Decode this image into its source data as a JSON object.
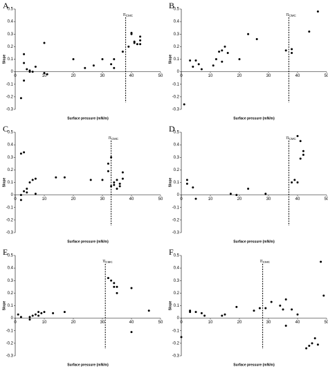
{
  "chart_data": [
    {
      "type": "scatter",
      "title": "A",
      "x_label": "Surface pressure (mN/m)",
      "y_label": "Slope",
      "annotation": "π",
      "annotation_sub": "CMC",
      "vline": 38,
      "color": "#000000",
      "x": [
        2,
        3,
        3,
        3,
        4,
        5,
        5,
        6,
        7,
        10,
        10,
        11,
        20,
        24,
        27,
        30,
        33,
        34,
        34,
        37,
        39,
        40,
        40,
        41,
        41,
        42,
        43,
        43,
        43
      ],
      "values": [
        -0.21,
        -0.07,
        0.07,
        0.14,
        0.02,
        0.0,
        0.01,
        0.0,
        0.04,
        0.23,
        -0.01,
        -0.02,
        0.1,
        0.03,
        0.05,
        0.1,
        0.06,
        0.03,
        0.1,
        0.16,
        0.2,
        0.31,
        0.3,
        0.23,
        0.24,
        0.22,
        0.28,
        0.22,
        0.25
      ],
      "xlim": [
        0,
        50
      ],
      "ylim": [
        -0.3,
        0.5
      ],
      "xticks": [
        0,
        10,
        20,
        30,
        40,
        50
      ],
      "yticks": [
        -0.3,
        -0.2,
        -0.1,
        0,
        0.1,
        0.2,
        0.3,
        0.4,
        0.5
      ]
    },
    {
      "type": "scatter",
      "title": "B",
      "x_label": "Surface pressure (mN/m)",
      "y_label": "Slope",
      "annotation": "π",
      "annotation_sub": "CMC",
      "vline": 37,
      "color": "#000000",
      "x": [
        1,
        3,
        4,
        5,
        6,
        7,
        11,
        12,
        13,
        14,
        14,
        15,
        16,
        20,
        23,
        26,
        36,
        38,
        38,
        44,
        47
      ],
      "values": [
        -0.26,
        0.09,
        0.04,
        0.09,
        0.06,
        0.02,
        0.05,
        0.1,
        0.16,
        0.17,
        0.08,
        0.2,
        0.15,
        0.1,
        0.3,
        0.26,
        0.17,
        0.18,
        0.15,
        0.32,
        0.48
      ],
      "xlim": [
        0,
        50
      ],
      "ylim": [
        -0.3,
        0.5
      ],
      "xticks": [
        0,
        10,
        20,
        30,
        40,
        50
      ],
      "yticks": [
        -0.3,
        -0.2,
        -0.1,
        0,
        0.1,
        0.2,
        0.3,
        0.4,
        0.5
      ]
    },
    {
      "type": "scatter",
      "title": "C",
      "x_label": "Surface pressure (mN/m)",
      "y_label": "Slope",
      "annotation": "π",
      "annotation_sub": "CMC",
      "vline": 33,
      "color": "#000000",
      "x": [
        2,
        3,
        2,
        2,
        3,
        4,
        4,
        5,
        6,
        7,
        7,
        14,
        17,
        26,
        30,
        32,
        32,
        33,
        34,
        34,
        35,
        35,
        36,
        36,
        37,
        37,
        33
      ],
      "values": [
        0.33,
        0.34,
        0.0,
        -0.04,
        0.03,
        0.05,
        0.02,
        0.1,
        0.12,
        0.01,
        0.13,
        0.14,
        0.14,
        0.12,
        0.12,
        0.19,
        0.25,
        0.3,
        0.08,
        0.1,
        0.05,
        0.12,
        0.07,
        0.09,
        0.13,
        0.18,
        0.07
      ],
      "xlim": [
        0,
        50
      ],
      "ylim": [
        -0.3,
        0.5
      ],
      "xticks": [
        0,
        10,
        20,
        30,
        40,
        50
      ],
      "yticks": [
        -0.3,
        -0.2,
        -0.1,
        0,
        0.1,
        0.2,
        0.3,
        0.4,
        0.5
      ]
    },
    {
      "type": "scatter",
      "title": "D",
      "x_label": "Surface pressure (mN/m)",
      "y_label": "Slope",
      "annotation": "π",
      "annotation_sub": "CMC",
      "vline": 37,
      "color": "#000000",
      "x": [
        2,
        2,
        4,
        5,
        17,
        19,
        23,
        29,
        38,
        39,
        40,
        41,
        41,
        42,
        42,
        40
      ],
      "values": [
        0.12,
        0.09,
        0.06,
        -0.03,
        0.01,
        0.0,
        0.05,
        0.01,
        0.1,
        0.12,
        0.47,
        0.43,
        0.29,
        0.32,
        0.35,
        0.1
      ],
      "xlim": [
        0,
        50
      ],
      "ylim": [
        -0.3,
        0.5
      ],
      "xticks": [
        0,
        10,
        20,
        30,
        40,
        50
      ],
      "yticks": [
        -0.3,
        -0.2,
        -0.1,
        0,
        0.1,
        0.2,
        0.3,
        0.4,
        0.5
      ]
    },
    {
      "type": "scatter",
      "title": "E",
      "x_label": "Surface pressure (mN/m)",
      "y_label": "Slope",
      "annotation": "π",
      "annotation_sub": "CMC",
      "vline": 31,
      "color": "#000000",
      "x": [
        1,
        2,
        5,
        5,
        6,
        7,
        8,
        8,
        9,
        10,
        13,
        17,
        32,
        33,
        34,
        35,
        35,
        34,
        40,
        40,
        46
      ],
      "values": [
        0.03,
        0.01,
        -0.01,
        0.01,
        0.02,
        0.03,
        0.02,
        0.05,
        0.04,
        0.05,
        0.04,
        0.05,
        0.32,
        0.3,
        0.28,
        0.2,
        0.25,
        0.25,
        0.24,
        -0.11,
        0.06
      ],
      "xlim": [
        0,
        50
      ],
      "ylim": [
        -0.3,
        0.5
      ],
      "xticks": [
        0,
        10,
        20,
        30,
        40,
        50
      ],
      "yticks": [
        -0.3,
        -0.2,
        -0.1,
        0,
        0.1,
        0.2,
        0.3,
        0.4,
        0.5
      ]
    },
    {
      "type": "scatter",
      "title": "F",
      "x_label": "Surface pressure (mN/m)",
      "y_label": "Slope",
      "annotation": "π",
      "annotation_sub": "CMC",
      "vline": 28,
      "color": "#000000",
      "x": [
        0,
        3,
        3,
        5,
        7,
        8,
        14,
        15,
        19,
        25,
        27,
        29,
        31,
        34,
        35,
        36,
        36,
        38,
        40,
        43,
        44,
        45,
        46,
        47,
        48,
        49
      ],
      "values": [
        -0.15,
        0.06,
        0.05,
        0.05,
        0.04,
        0.02,
        0.02,
        0.03,
        0.09,
        0.06,
        0.08,
        0.08,
        0.13,
        0.1,
        0.07,
        -0.06,
        0.15,
        0.07,
        0.03,
        -0.24,
        -0.22,
        -0.2,
        -0.16,
        -0.21,
        0.45,
        0.18
      ],
      "xlim": [
        0,
        50
      ],
      "ylim": [
        -0.3,
        0.5
      ],
      "xticks": [
        0,
        10,
        20,
        30,
        40,
        50
      ],
      "yticks": [
        -0.3,
        -0.2,
        -0.1,
        0,
        0.1,
        0.2,
        0.3,
        0.4,
        0.5
      ]
    }
  ]
}
